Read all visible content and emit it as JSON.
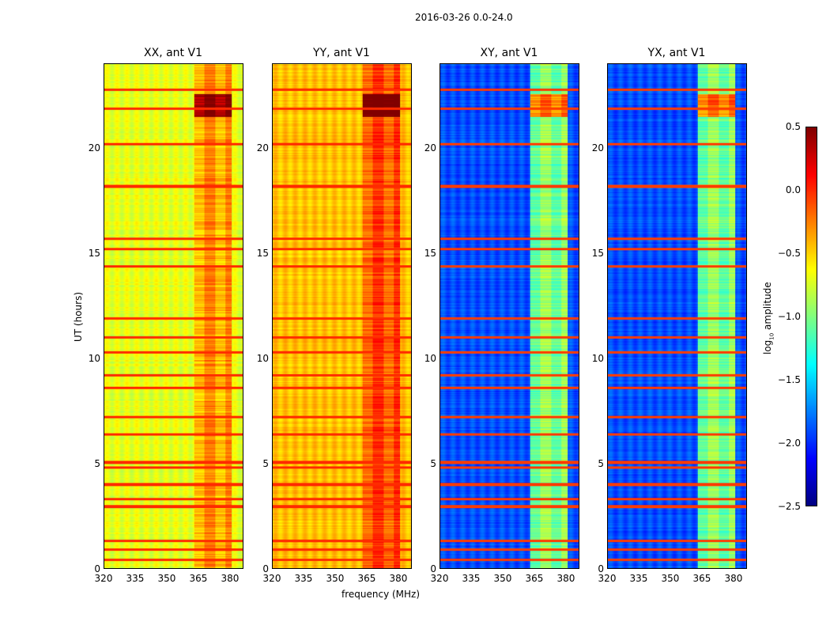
{
  "chart_data": {
    "type": "heatmap",
    "suptitle": "2016-03-26 0.0-24.0",
    "xlabel": "frequency (MHz)",
    "ylabel": "UT (hours)",
    "xlim": [
      320,
      386.4
    ],
    "ylim": [
      0,
      24
    ],
    "xticks": [
      "320",
      "335",
      "350",
      "365",
      "380"
    ],
    "yticks": [
      "0",
      "5",
      "10",
      "15",
      "20"
    ],
    "colormap": "jet",
    "colorbar": {
      "label": "log10 amplitude",
      "label_main": "log",
      "label_sub": "10",
      "label_rest": " amplitude",
      "range": [
        -2.5,
        0.5
      ],
      "ticks": [
        "0.5",
        "0.0",
        "−0.5",
        "−1.0",
        "−1.5",
        "−2.0",
        "−2.5"
      ]
    },
    "panels": [
      {
        "title": "XX, ant V1",
        "base_level": -0.7,
        "band_level": -0.35
      },
      {
        "title": "YY, ant V1",
        "base_level": -0.45,
        "band_level": -0.1
      },
      {
        "title": "XY, ant V1",
        "base_level": -1.9,
        "band_level": -1.0
      },
      {
        "title": "YX, ant V1",
        "base_level": -1.9,
        "band_level": -1.0
      }
    ],
    "rfi_band_mhz": [
      363,
      381
    ],
    "rfi_hours": [
      0.4,
      0.9,
      1.3,
      2.95,
      3.3,
      4.0,
      4.8,
      5.05,
      6.4,
      7.2,
      8.6,
      9.2,
      10.3,
      11.0,
      11.9,
      14.4,
      15.2,
      15.7,
      18.2,
      20.2,
      21.9,
      22.8
    ]
  }
}
